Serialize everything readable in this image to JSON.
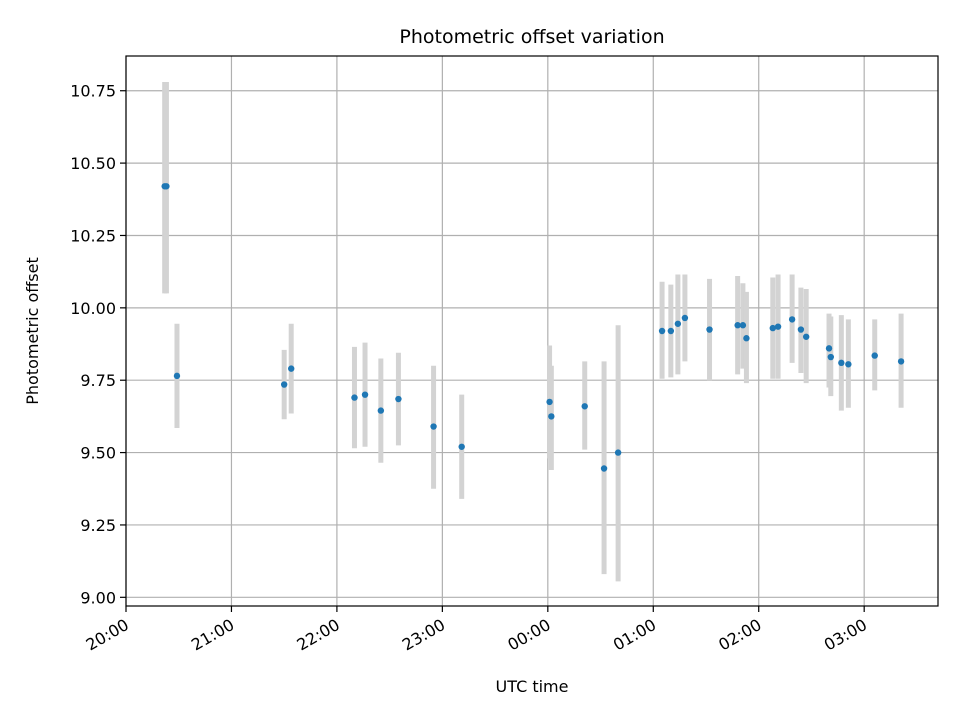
{
  "chart_data": {
    "type": "scatter",
    "title": "Photometric offset variation",
    "xlabel": "UTC time",
    "ylabel": "Photometric offset",
    "grid": true,
    "xlim": [
      "20:00",
      "03:42"
    ],
    "ylim": [
      8.97,
      10.87
    ],
    "x_ticks": [
      "20:00",
      "21:00",
      "22:00",
      "23:00",
      "00:00",
      "01:00",
      "02:00",
      "03:00"
    ],
    "y_ticks": [
      "9.00",
      "9.25",
      "9.50",
      "9.75",
      "10.00",
      "10.25",
      "10.50",
      "10.75"
    ],
    "colors": {
      "points": "#1f77b4",
      "error_bars": "#d3d3d3",
      "grid": "#b0b0b0"
    },
    "series": [
      {
        "points": [
          {
            "x": "20:22",
            "y": 10.42,
            "lo": 10.05,
            "hi": 10.78
          },
          {
            "x": "20:23",
            "y": 10.42,
            "lo": 10.05,
            "hi": 10.78
          },
          {
            "x": "20:29",
            "y": 9.765,
            "lo": 9.585,
            "hi": 9.945
          },
          {
            "x": "21:30",
            "y": 9.735,
            "lo": 9.615,
            "hi": 9.855
          },
          {
            "x": "21:34",
            "y": 9.79,
            "lo": 9.635,
            "hi": 9.945
          },
          {
            "x": "22:10",
            "y": 9.69,
            "lo": 9.515,
            "hi": 9.865
          },
          {
            "x": "22:16",
            "y": 9.7,
            "lo": 9.52,
            "hi": 9.88
          },
          {
            "x": "22:25",
            "y": 9.645,
            "lo": 9.465,
            "hi": 9.825
          },
          {
            "x": "22:35",
            "y": 9.685,
            "lo": 9.525,
            "hi": 9.845
          },
          {
            "x": "22:55",
            "y": 9.59,
            "lo": 9.375,
            "hi": 9.8
          },
          {
            "x": "23:11",
            "y": 9.52,
            "lo": 9.34,
            "hi": 9.7
          },
          {
            "x": "00:01",
            "y": 9.675,
            "lo": 9.48,
            "hi": 9.87
          },
          {
            "x": "00:02",
            "y": 9.625,
            "lo": 9.44,
            "hi": 9.8
          },
          {
            "x": "00:21",
            "y": 9.66,
            "lo": 9.51,
            "hi": 9.815
          },
          {
            "x": "00:32",
            "y": 9.445,
            "lo": 9.08,
            "hi": 9.815
          },
          {
            "x": "00:40",
            "y": 9.5,
            "lo": 9.055,
            "hi": 9.94
          },
          {
            "x": "01:05",
            "y": 9.92,
            "lo": 9.755,
            "hi": 10.09
          },
          {
            "x": "01:10",
            "y": 9.92,
            "lo": 9.76,
            "hi": 10.08
          },
          {
            "x": "01:14",
            "y": 9.945,
            "lo": 9.77,
            "hi": 10.115
          },
          {
            "x": "01:18",
            "y": 9.965,
            "lo": 9.815,
            "hi": 10.115
          },
          {
            "x": "01:32",
            "y": 9.925,
            "lo": 9.75,
            "hi": 10.1
          },
          {
            "x": "01:48",
            "y": 9.94,
            "lo": 9.77,
            "hi": 10.11
          },
          {
            "x": "01:51",
            "y": 9.94,
            "lo": 9.79,
            "hi": 10.085
          },
          {
            "x": "01:53",
            "y": 9.895,
            "lo": 9.74,
            "hi": 10.055
          },
          {
            "x": "02:08",
            "y": 9.93,
            "lo": 9.755,
            "hi": 10.105
          },
          {
            "x": "02:11",
            "y": 9.935,
            "lo": 9.755,
            "hi": 10.115
          },
          {
            "x": "02:19",
            "y": 9.96,
            "lo": 9.81,
            "hi": 10.115
          },
          {
            "x": "02:24",
            "y": 9.925,
            "lo": 9.775,
            "hi": 10.07
          },
          {
            "x": "02:27",
            "y": 9.9,
            "lo": 9.74,
            "hi": 10.065
          },
          {
            "x": "02:40",
            "y": 9.86,
            "lo": 9.725,
            "hi": 9.98
          },
          {
            "x": "02:41",
            "y": 9.83,
            "lo": 9.695,
            "hi": 9.97
          },
          {
            "x": "02:47",
            "y": 9.81,
            "lo": 9.645,
            "hi": 9.975
          },
          {
            "x": "02:51",
            "y": 9.805,
            "lo": 9.655,
            "hi": 9.96
          },
          {
            "x": "03:06",
            "y": 9.835,
            "lo": 9.715,
            "hi": 9.96
          },
          {
            "x": "03:21",
            "y": 9.815,
            "lo": 9.655,
            "hi": 9.98
          }
        ]
      }
    ]
  }
}
